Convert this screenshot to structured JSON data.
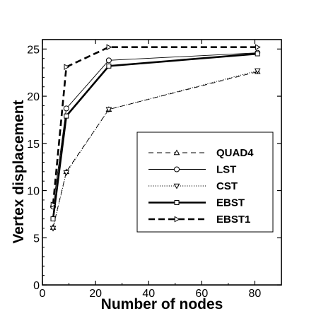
{
  "chart_data": {
    "type": "line",
    "xlabel": "Number of nodes",
    "ylabel": "Vertex displacement",
    "xlim": [
      0,
      90
    ],
    "ylim": [
      0,
      26
    ],
    "xticks": [
      0,
      20,
      40,
      60,
      80
    ],
    "yticks": [
      0,
      5,
      10,
      15,
      20,
      25
    ],
    "grid": false,
    "legend_position": "center-right",
    "series": [
      {
        "name": "QUAD4",
        "x": [
          4,
          9,
          25,
          81
        ],
        "y": [
          6.1,
          12.0,
          18.6,
          22.6
        ],
        "style": "thin-dashed",
        "marker": "triangle-up",
        "color": "#000000"
      },
      {
        "name": "LST",
        "x": [
          4,
          9,
          25,
          81
        ],
        "y": [
          8.3,
          18.7,
          23.8,
          24.6
        ],
        "style": "thin-solid",
        "marker": "circle",
        "color": "#000000"
      },
      {
        "name": "CST",
        "x": [
          4,
          9,
          25,
          81
        ],
        "y": [
          6.0,
          11.9,
          18.6,
          22.7
        ],
        "style": "thin-dotted",
        "marker": "triangle-down",
        "color": "#000000"
      },
      {
        "name": "EBST",
        "x": [
          4,
          9,
          25,
          81
        ],
        "y": [
          7.0,
          17.9,
          23.2,
          24.5
        ],
        "style": "thick-solid",
        "marker": "square",
        "color": "#000000"
      },
      {
        "name": "EBST1",
        "x": [
          4,
          9,
          25,
          81
        ],
        "y": [
          8.5,
          23.1,
          25.2,
          25.2
        ],
        "style": "thick-dashed",
        "marker": "triangle-right",
        "color": "#000000"
      }
    ]
  }
}
